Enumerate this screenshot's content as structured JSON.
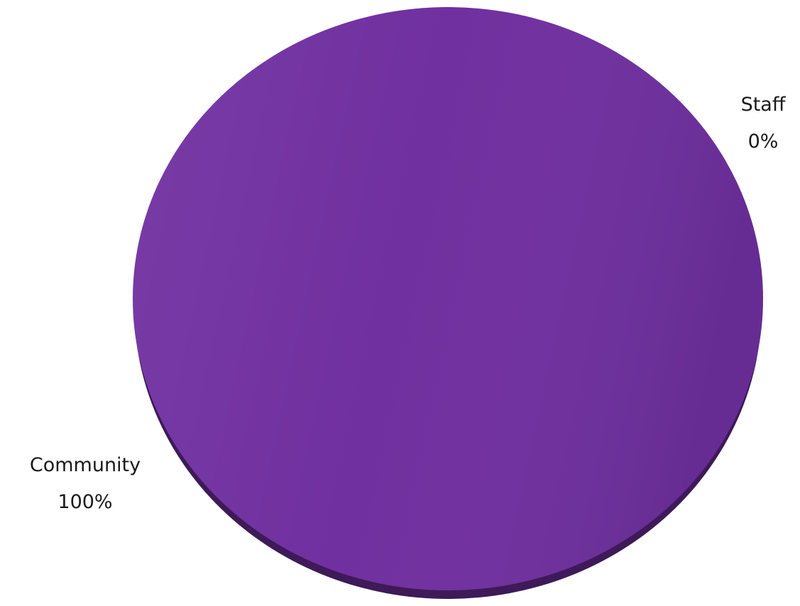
{
  "chart_data": {
    "type": "pie",
    "categories": [
      "Community",
      "Staff"
    ],
    "values": [
      100,
      0
    ],
    "labels": [
      {
        "name": "Community",
        "percent": "100%"
      },
      {
        "name": "Staff",
        "percent": "0%"
      }
    ],
    "colors": {
      "Community": "#7030a0",
      "Staff": "#4f81bd"
    },
    "legend": "none"
  }
}
